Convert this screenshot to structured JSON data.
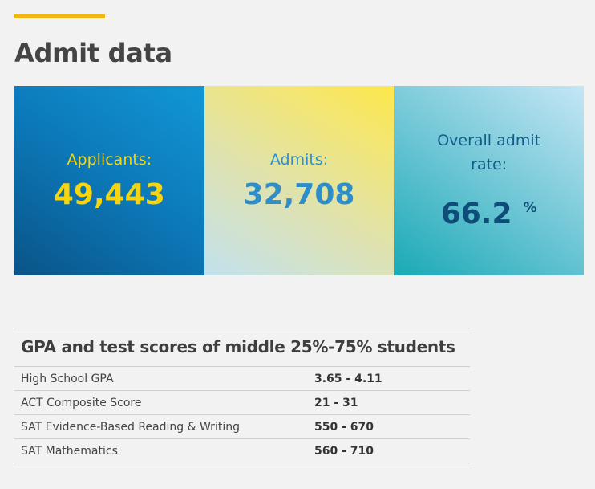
{
  "header": {
    "title": "Admit data"
  },
  "stats": {
    "applicants": {
      "label": "Applicants:",
      "value": "49,443"
    },
    "admits": {
      "label": "Admits:",
      "value": "32,708"
    },
    "admit_rate": {
      "label": "Overall admit rate:",
      "value": "66.2",
      "unit": "%"
    }
  },
  "colors": {
    "accent": "#f2b613",
    "applicants_tile": "#0c78b8",
    "admits_tile": "#f4e670",
    "rate_tile": "#79cad9",
    "applicants_text": "#f7d50e",
    "admits_text": "#2f8ec9",
    "rate_text": "#0f4c78"
  },
  "scores": {
    "heading": "GPA and test scores of middle 25%-75% students",
    "rows": [
      {
        "label": "High School GPA",
        "value": "3.65 - 4.11"
      },
      {
        "label": "ACT Composite Score",
        "value": "21 - 31"
      },
      {
        "label": "SAT Evidence-Based Reading & Writing",
        "value": "550 - 670"
      },
      {
        "label": "SAT Mathematics",
        "value": "560 - 710"
      }
    ]
  }
}
